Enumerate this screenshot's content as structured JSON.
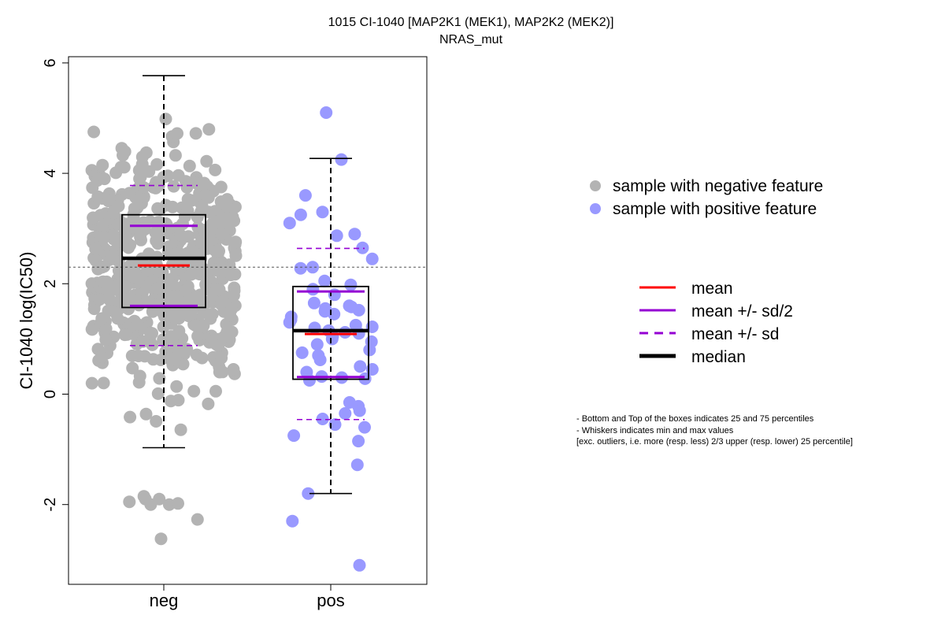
{
  "chart_data": {
    "type": "box",
    "title": "1015 CI-1040 [MAP2K1 (MEK1), MAP2K2 (MEK2)]",
    "subtitle": "NRAS_mut",
    "xlabel": "",
    "ylabel": "CI-1040 log(IC50)",
    "ylim": [
      -3.4,
      6.15
    ],
    "yticks": [
      -2,
      0,
      2,
      4,
      6
    ],
    "reference_line_y": 2.3,
    "categories": [
      "neg",
      "pos"
    ],
    "colors": {
      "neg_points": "#b3b3b3",
      "pos_points": "#9999ff",
      "mean": "#ff0000",
      "sd": "#9400d3",
      "median": "#000000"
    },
    "groups": [
      {
        "name": "neg",
        "min": -0.97,
        "q1": 1.57,
        "median": 2.46,
        "q3": 3.25,
        "max": 5.77,
        "mean": 2.33,
        "mean_minus_half_sd": 1.6,
        "mean_plus_half_sd": 3.05,
        "mean_minus_sd": 0.88,
        "mean_plus_sd": 3.78,
        "n_points": 560,
        "outliers_low": [
          -1.9,
          -1.95,
          -2.0,
          -2.0,
          -1.98,
          -1.9,
          -1.85,
          -2.27,
          -2.62
        ]
      },
      {
        "name": "pos",
        "min": -1.8,
        "q1": 0.27,
        "median": 1.15,
        "q3": 1.95,
        "max": 4.27,
        "mean": 1.09,
        "mean_minus_half_sd": 0.31,
        "mean_plus_half_sd": 1.86,
        "mean_minus_sd": -0.46,
        "mean_plus_sd": 2.64,
        "points": [
          5.1,
          4.25,
          3.6,
          3.3,
          3.25,
          3.1,
          2.9,
          2.87,
          2.65,
          2.45,
          2.3,
          2.28,
          2.05,
          1.98,
          1.9,
          1.8,
          1.65,
          1.6,
          1.58,
          1.55,
          1.52,
          1.5,
          1.45,
          1.4,
          1.35,
          1.3,
          1.25,
          1.22,
          1.2,
          1.15,
          1.12,
          1.1,
          1.05,
          1.0,
          0.95,
          0.9,
          0.8,
          0.75,
          0.7,
          0.62,
          0.5,
          0.45,
          0.4,
          0.32,
          0.3,
          0.28,
          0.25,
          -0.15,
          -0.22,
          -0.3,
          -0.35,
          -0.45,
          -0.55,
          -0.6,
          -0.75,
          -0.85,
          -1.28,
          -1.8,
          -2.3,
          -3.1
        ]
      }
    ],
    "legend_points": [
      {
        "label": "sample with negative feature",
        "color": "#b3b3b3"
      },
      {
        "label": "sample with positive feature",
        "color": "#9999ff"
      }
    ],
    "legend_lines": [
      {
        "label": "mean",
        "color": "#ff0000",
        "style": "solid",
        "weight": "normal"
      },
      {
        "label": "mean +/- sd/2",
        "color": "#9400d3",
        "style": "solid",
        "weight": "normal"
      },
      {
        "label": "mean +/- sd",
        "color": "#9400d3",
        "style": "dashed",
        "weight": "normal"
      },
      {
        "label": "median",
        "color": "#000000",
        "style": "solid",
        "weight": "bold"
      }
    ]
  },
  "notes": [
    "- Bottom and Top of the boxes indicates 25 and 75 percentiles",
    "- Whiskers indicates min and max values",
    "[exc. outliers, i.e. more (resp. less) 2/3 upper (resp. lower) 25 percentile]"
  ]
}
